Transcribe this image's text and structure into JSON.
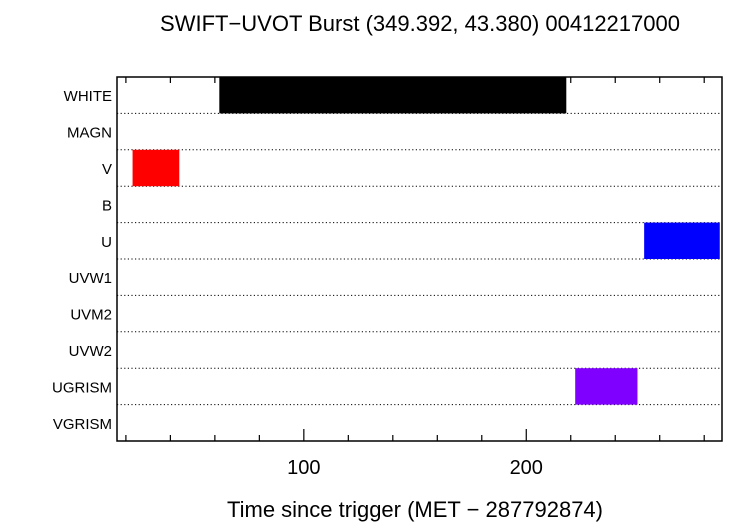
{
  "chart_data": {
    "type": "bar",
    "orientation": "horizontal-intervals",
    "title": "SWIFT−UVOT Burst (349.392, 43.380) 00412217000",
    "xlabel": "Time since trigger (MET − 287792874)",
    "ylabel": "",
    "xlim": [
      16,
      288
    ],
    "x_major_ticks": [
      100,
      200
    ],
    "x_minor_step": 20,
    "grid": "dotted horizontal separators",
    "categories": [
      "WHITE",
      "MAGN",
      "V",
      "B",
      "U",
      "UVW1",
      "UVM2",
      "UVW2",
      "UGRISM",
      "VGRISM"
    ],
    "intervals": [
      {
        "filter": "WHITE",
        "start": 62,
        "end": 218,
        "color": "#000000"
      },
      {
        "filter": "V",
        "start": 23,
        "end": 44,
        "color": "#ff0000"
      },
      {
        "filter": "U",
        "start": 253,
        "end": 287,
        "color": "#0000ff"
      },
      {
        "filter": "UGRISM",
        "start": 222,
        "end": 250,
        "color": "#7f00ff"
      }
    ]
  }
}
